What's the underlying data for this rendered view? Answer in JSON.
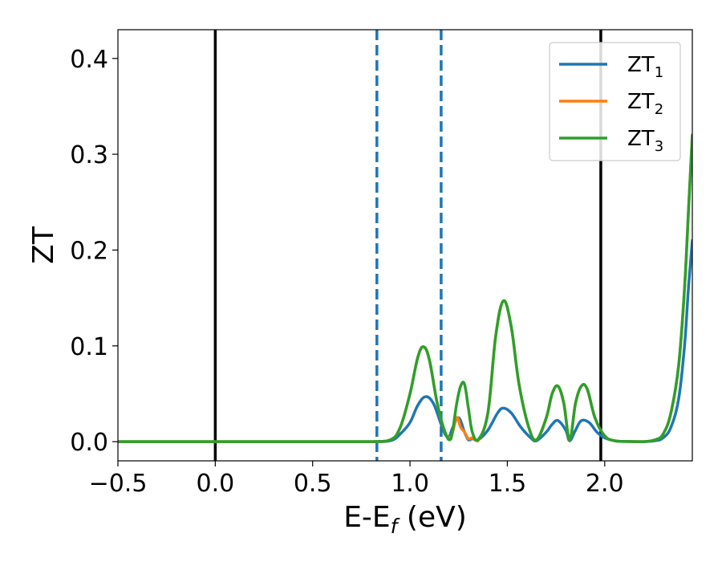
{
  "chart_data": {
    "type": "line",
    "title": "",
    "xlabel": "E-E",
    "xlabel_sub": "f",
    "xlabel_unit": " (eV)",
    "ylabel": "ZT",
    "xlim": [
      -0.5,
      2.45
    ],
    "ylim": [
      -0.02,
      0.43
    ],
    "xticks": [
      -0.5,
      0.0,
      0.5,
      1.0,
      1.5,
      2.0
    ],
    "xtick_labels": [
      "−0.5",
      "0.0",
      "0.5",
      "1.0",
      "1.5",
      "2.0"
    ],
    "yticks": [
      0.0,
      0.1,
      0.2,
      0.3,
      0.4
    ],
    "ytick_labels": [
      "0.0",
      "0.1",
      "0.2",
      "0.3",
      "0.4"
    ],
    "grid": false,
    "legend_position": "top-right",
    "vertical_lines": [
      {
        "x": 0.0,
        "color": "#000000",
        "style": "solid"
      },
      {
        "x": 1.98,
        "color": "#000000",
        "style": "solid"
      },
      {
        "x": 0.83,
        "color": "#1f77b4",
        "style": "dashed"
      },
      {
        "x": 1.16,
        "color": "#1f77b4",
        "style": "dashed"
      }
    ],
    "series": [
      {
        "name": "ZT",
        "sub": "1",
        "color": "#1f77b4",
        "x": [
          -0.5,
          0.0,
          0.5,
          0.8,
          0.9,
          0.95,
          1.0,
          1.04,
          1.08,
          1.12,
          1.16,
          1.18,
          1.2,
          1.22,
          1.25,
          1.28,
          1.3,
          1.32,
          1.35,
          1.4,
          1.45,
          1.48,
          1.52,
          1.57,
          1.62,
          1.65,
          1.7,
          1.73,
          1.76,
          1.8,
          1.82,
          1.85,
          1.88,
          1.92,
          1.96,
          2.0,
          2.05,
          2.1,
          2.2,
          2.26,
          2.3,
          2.34,
          2.38,
          2.41,
          2.43,
          2.45
        ],
        "y": [
          0,
          0,
          0,
          0,
          0.001,
          0.008,
          0.02,
          0.038,
          0.047,
          0.04,
          0.018,
          0.008,
          0.005,
          0.015,
          0.025,
          0.01,
          0.002,
          0.003,
          0.002,
          0.012,
          0.03,
          0.035,
          0.03,
          0.015,
          0.004,
          0.001,
          0.01,
          0.018,
          0.022,
          0.012,
          0.001,
          0.012,
          0.022,
          0.02,
          0.01,
          0.004,
          0.001,
          0.0002,
          0,
          0.001,
          0.004,
          0.015,
          0.045,
          0.1,
          0.16,
          0.21
        ]
      },
      {
        "name": "ZT",
        "sub": "2",
        "color": "#ff7f0e",
        "x": [
          -0.5,
          0.0,
          0.5,
          0.8,
          0.9,
          0.95,
          1.0,
          1.04,
          1.07,
          1.1,
          1.14,
          1.18,
          1.21,
          1.24,
          1.26,
          1.28,
          1.3,
          1.32,
          1.35,
          1.4,
          1.44,
          1.48,
          1.52,
          1.56,
          1.61,
          1.65,
          1.7,
          1.73,
          1.76,
          1.79,
          1.82,
          1.85,
          1.88,
          1.91,
          1.95,
          2.0,
          2.05,
          2.1,
          2.2,
          2.26,
          2.3,
          2.34,
          2.38,
          2.41,
          2.43,
          2.45
        ],
        "y": [
          0,
          0,
          0,
          0,
          0.002,
          0.015,
          0.05,
          0.088,
          0.099,
          0.085,
          0.04,
          0.01,
          0.005,
          0.025,
          0.015,
          0.01,
          0.003,
          0.004,
          0.001,
          0.03,
          0.11,
          0.147,
          0.12,
          0.06,
          0.015,
          0.002,
          0.025,
          0.05,
          0.058,
          0.04,
          0.002,
          0.04,
          0.058,
          0.055,
          0.025,
          0.006,
          0.001,
          0.0003,
          0,
          0.002,
          0.008,
          0.03,
          0.08,
          0.16,
          0.24,
          0.32
        ]
      },
      {
        "name": "ZT",
        "sub": "3",
        "color": "#2ca02c",
        "x": [
          -0.5,
          0.0,
          0.5,
          0.8,
          0.9,
          0.95,
          1.0,
          1.04,
          1.07,
          1.1,
          1.14,
          1.18,
          1.21,
          1.24,
          1.26,
          1.28,
          1.3,
          1.32,
          1.35,
          1.4,
          1.44,
          1.48,
          1.52,
          1.56,
          1.61,
          1.65,
          1.7,
          1.73,
          1.76,
          1.79,
          1.82,
          1.85,
          1.88,
          1.91,
          1.95,
          2.0,
          2.05,
          2.1,
          2.2,
          2.26,
          2.3,
          2.34,
          2.38,
          2.41,
          2.43,
          2.45
        ],
        "y": [
          0,
          0,
          0,
          0,
          0.002,
          0.015,
          0.05,
          0.088,
          0.099,
          0.085,
          0.04,
          0.01,
          0.003,
          0.04,
          0.058,
          0.06,
          0.035,
          0.01,
          0.002,
          0.03,
          0.11,
          0.147,
          0.12,
          0.06,
          0.015,
          0.002,
          0.025,
          0.05,
          0.058,
          0.04,
          0.002,
          0.04,
          0.058,
          0.055,
          0.025,
          0.006,
          0.001,
          0.0003,
          0,
          0.002,
          0.008,
          0.03,
          0.08,
          0.16,
          0.24,
          0.32
        ]
      }
    ]
  }
}
